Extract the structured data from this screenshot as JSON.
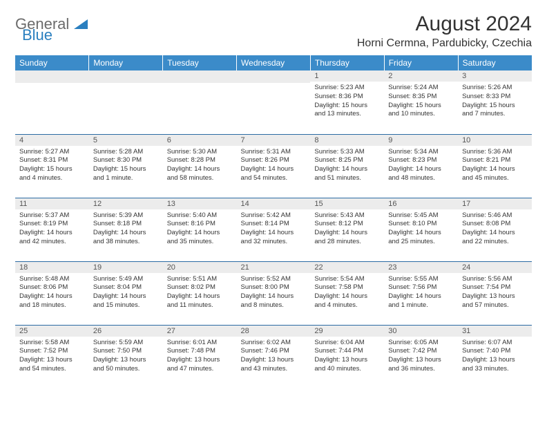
{
  "logo": {
    "text1": "General",
    "text2": "Blue"
  },
  "title": "August 2024",
  "location": "Horni Cermna, Pardubicky, Czechia",
  "weekday_labels": [
    "Sunday",
    "Monday",
    "Tuesday",
    "Wednesday",
    "Thursday",
    "Friday",
    "Saturday"
  ],
  "colors": {
    "header_bg": "#3b8bc9",
    "header_fg": "#ffffff",
    "daynum_bg": "#ececec",
    "rule": "#2a6aa3",
    "logo_gray": "#6b6b6b",
    "logo_blue": "#2a7fbf"
  },
  "weeks": [
    [
      {
        "n": "",
        "sr": "",
        "ss": "",
        "dl": ""
      },
      {
        "n": "",
        "sr": "",
        "ss": "",
        "dl": ""
      },
      {
        "n": "",
        "sr": "",
        "ss": "",
        "dl": ""
      },
      {
        "n": "",
        "sr": "",
        "ss": "",
        "dl": ""
      },
      {
        "n": "1",
        "sr": "Sunrise: 5:23 AM",
        "ss": "Sunset: 8:36 PM",
        "dl": "Daylight: 15 hours and 13 minutes."
      },
      {
        "n": "2",
        "sr": "Sunrise: 5:24 AM",
        "ss": "Sunset: 8:35 PM",
        "dl": "Daylight: 15 hours and 10 minutes."
      },
      {
        "n": "3",
        "sr": "Sunrise: 5:26 AM",
        "ss": "Sunset: 8:33 PM",
        "dl": "Daylight: 15 hours and 7 minutes."
      }
    ],
    [
      {
        "n": "4",
        "sr": "Sunrise: 5:27 AM",
        "ss": "Sunset: 8:31 PM",
        "dl": "Daylight: 15 hours and 4 minutes."
      },
      {
        "n": "5",
        "sr": "Sunrise: 5:28 AM",
        "ss": "Sunset: 8:30 PM",
        "dl": "Daylight: 15 hours and 1 minute."
      },
      {
        "n": "6",
        "sr": "Sunrise: 5:30 AM",
        "ss": "Sunset: 8:28 PM",
        "dl": "Daylight: 14 hours and 58 minutes."
      },
      {
        "n": "7",
        "sr": "Sunrise: 5:31 AM",
        "ss": "Sunset: 8:26 PM",
        "dl": "Daylight: 14 hours and 54 minutes."
      },
      {
        "n": "8",
        "sr": "Sunrise: 5:33 AM",
        "ss": "Sunset: 8:25 PM",
        "dl": "Daylight: 14 hours and 51 minutes."
      },
      {
        "n": "9",
        "sr": "Sunrise: 5:34 AM",
        "ss": "Sunset: 8:23 PM",
        "dl": "Daylight: 14 hours and 48 minutes."
      },
      {
        "n": "10",
        "sr": "Sunrise: 5:36 AM",
        "ss": "Sunset: 8:21 PM",
        "dl": "Daylight: 14 hours and 45 minutes."
      }
    ],
    [
      {
        "n": "11",
        "sr": "Sunrise: 5:37 AM",
        "ss": "Sunset: 8:19 PM",
        "dl": "Daylight: 14 hours and 42 minutes."
      },
      {
        "n": "12",
        "sr": "Sunrise: 5:39 AM",
        "ss": "Sunset: 8:18 PM",
        "dl": "Daylight: 14 hours and 38 minutes."
      },
      {
        "n": "13",
        "sr": "Sunrise: 5:40 AM",
        "ss": "Sunset: 8:16 PM",
        "dl": "Daylight: 14 hours and 35 minutes."
      },
      {
        "n": "14",
        "sr": "Sunrise: 5:42 AM",
        "ss": "Sunset: 8:14 PM",
        "dl": "Daylight: 14 hours and 32 minutes."
      },
      {
        "n": "15",
        "sr": "Sunrise: 5:43 AM",
        "ss": "Sunset: 8:12 PM",
        "dl": "Daylight: 14 hours and 28 minutes."
      },
      {
        "n": "16",
        "sr": "Sunrise: 5:45 AM",
        "ss": "Sunset: 8:10 PM",
        "dl": "Daylight: 14 hours and 25 minutes."
      },
      {
        "n": "17",
        "sr": "Sunrise: 5:46 AM",
        "ss": "Sunset: 8:08 PM",
        "dl": "Daylight: 14 hours and 22 minutes."
      }
    ],
    [
      {
        "n": "18",
        "sr": "Sunrise: 5:48 AM",
        "ss": "Sunset: 8:06 PM",
        "dl": "Daylight: 14 hours and 18 minutes."
      },
      {
        "n": "19",
        "sr": "Sunrise: 5:49 AM",
        "ss": "Sunset: 8:04 PM",
        "dl": "Daylight: 14 hours and 15 minutes."
      },
      {
        "n": "20",
        "sr": "Sunrise: 5:51 AM",
        "ss": "Sunset: 8:02 PM",
        "dl": "Daylight: 14 hours and 11 minutes."
      },
      {
        "n": "21",
        "sr": "Sunrise: 5:52 AM",
        "ss": "Sunset: 8:00 PM",
        "dl": "Daylight: 14 hours and 8 minutes."
      },
      {
        "n": "22",
        "sr": "Sunrise: 5:54 AM",
        "ss": "Sunset: 7:58 PM",
        "dl": "Daylight: 14 hours and 4 minutes."
      },
      {
        "n": "23",
        "sr": "Sunrise: 5:55 AM",
        "ss": "Sunset: 7:56 PM",
        "dl": "Daylight: 14 hours and 1 minute."
      },
      {
        "n": "24",
        "sr": "Sunrise: 5:56 AM",
        "ss": "Sunset: 7:54 PM",
        "dl": "Daylight: 13 hours and 57 minutes."
      }
    ],
    [
      {
        "n": "25",
        "sr": "Sunrise: 5:58 AM",
        "ss": "Sunset: 7:52 PM",
        "dl": "Daylight: 13 hours and 54 minutes."
      },
      {
        "n": "26",
        "sr": "Sunrise: 5:59 AM",
        "ss": "Sunset: 7:50 PM",
        "dl": "Daylight: 13 hours and 50 minutes."
      },
      {
        "n": "27",
        "sr": "Sunrise: 6:01 AM",
        "ss": "Sunset: 7:48 PM",
        "dl": "Daylight: 13 hours and 47 minutes."
      },
      {
        "n": "28",
        "sr": "Sunrise: 6:02 AM",
        "ss": "Sunset: 7:46 PM",
        "dl": "Daylight: 13 hours and 43 minutes."
      },
      {
        "n": "29",
        "sr": "Sunrise: 6:04 AM",
        "ss": "Sunset: 7:44 PM",
        "dl": "Daylight: 13 hours and 40 minutes."
      },
      {
        "n": "30",
        "sr": "Sunrise: 6:05 AM",
        "ss": "Sunset: 7:42 PM",
        "dl": "Daylight: 13 hours and 36 minutes."
      },
      {
        "n": "31",
        "sr": "Sunrise: 6:07 AM",
        "ss": "Sunset: 7:40 PM",
        "dl": "Daylight: 13 hours and 33 minutes."
      }
    ]
  ]
}
